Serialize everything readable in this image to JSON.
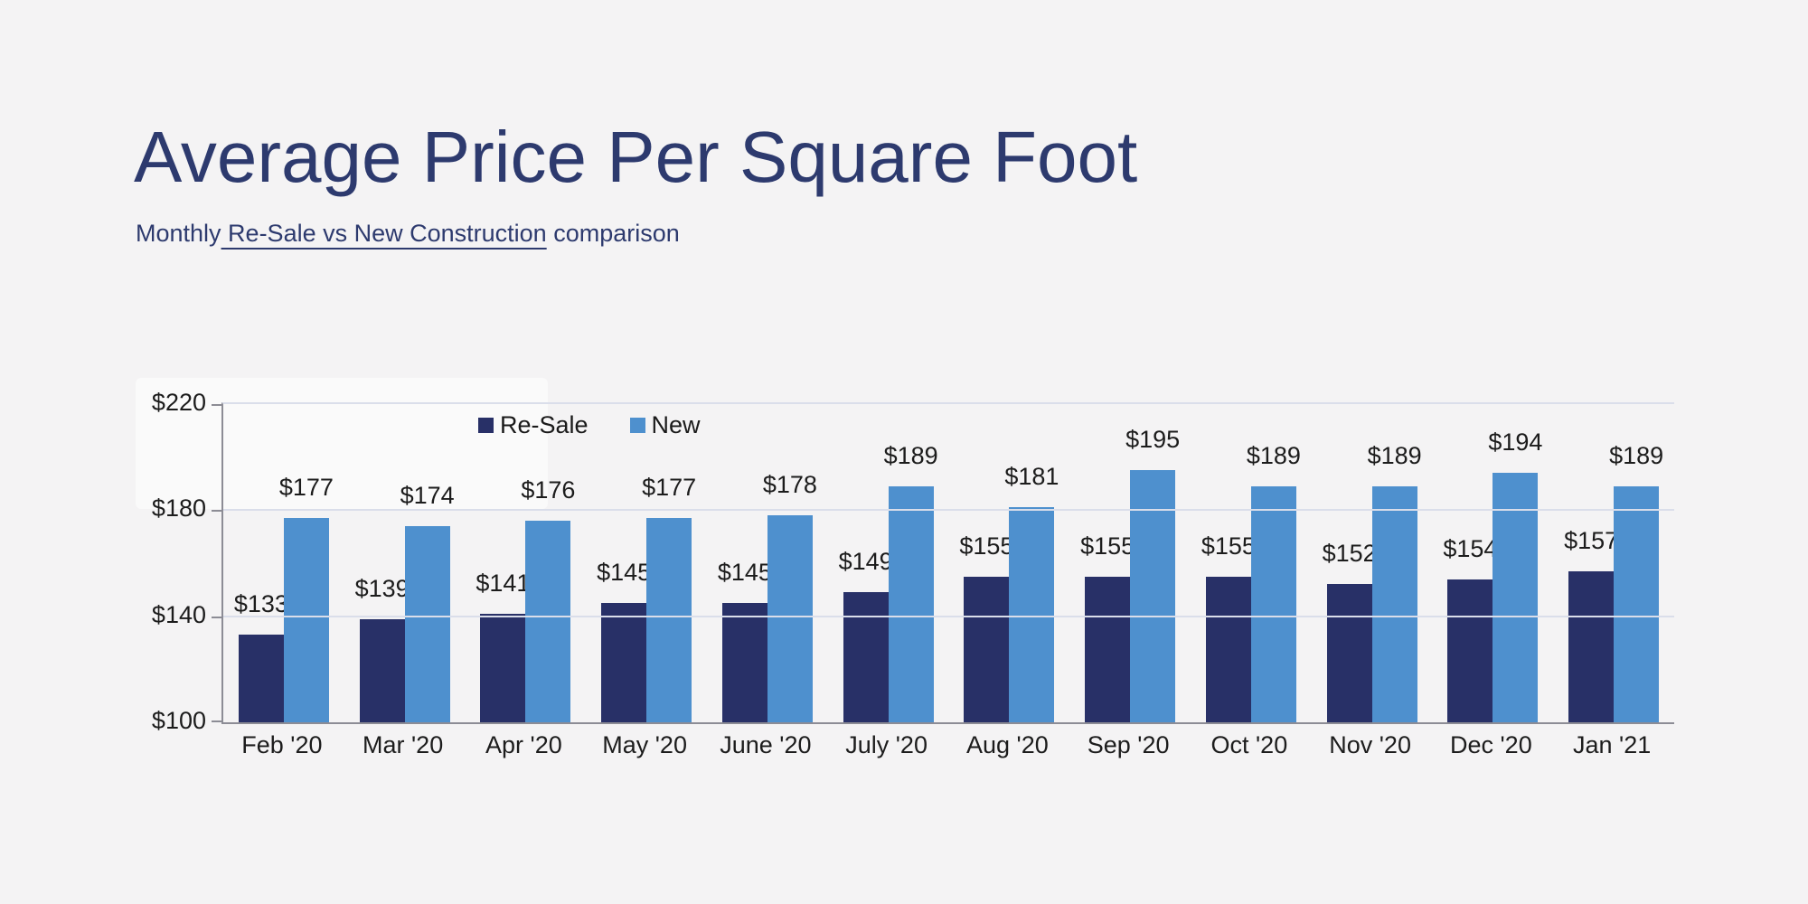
{
  "page": {
    "title": "Average Price Per Square Foot",
    "subtitle_prefix": "Monthly",
    "subtitle_underlined": " Re-Sale vs New Construction",
    "subtitle_suffix": " comparison"
  },
  "colors": {
    "background": "#f4f3f4",
    "title_navy": "#2d3a6e",
    "resale_bar": "#283067",
    "new_bar": "#4e90ce",
    "gridline": "#dadeea",
    "axis_line": "#8c8c95",
    "label_text": "#1c1c1c"
  },
  "chart_data": {
    "type": "bar",
    "categories": [
      "Feb '20",
      "Mar '20",
      "Apr '20",
      "May '20",
      "June '20",
      "July '20",
      "Aug '20",
      "Sep '20",
      "Oct '20",
      "Nov '20",
      "Dec '20",
      "Jan '21"
    ],
    "series": [
      {
        "name": "Re-Sale",
        "color": "#283067",
        "values": [
          133,
          139,
          141,
          145,
          145,
          149,
          155,
          155,
          155,
          152,
          154,
          157
        ]
      },
      {
        "name": "New",
        "color": "#4e90ce",
        "values": [
          177,
          174,
          176,
          177,
          178,
          189,
          181,
          195,
          189,
          189,
          194,
          189
        ]
      }
    ],
    "value_prefix": "$",
    "ylim": [
      100,
      220
    ],
    "y_ticks": [
      {
        "value": 220,
        "label": "$220"
      },
      {
        "value": 180,
        "label": "$180"
      },
      {
        "value": 140,
        "label": "$140"
      },
      {
        "value": 100,
        "label": "$100"
      }
    ],
    "grid": "horizontal",
    "legend_position": "inside-top-left",
    "data_labels": true
  }
}
